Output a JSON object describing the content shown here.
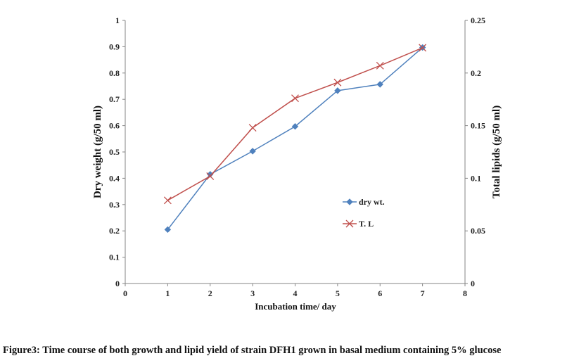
{
  "chart_data": {
    "type": "line",
    "title": "",
    "xlabel": "Incubation time/ day",
    "ylabel": "Dry weight (g/50 ml)",
    "y2label": "Total lipids (g/50  ml)",
    "xlim": [
      0,
      8
    ],
    "ylim": [
      0,
      1
    ],
    "y2lim": [
      0,
      0.25
    ],
    "x_ticks": [
      "0",
      "1",
      "2",
      "3",
      "4",
      "5",
      "6",
      "7",
      "8"
    ],
    "y_ticks": [
      "0",
      "0.1",
      "0.2",
      "0.3",
      "0.4",
      "0.5",
      "0.6",
      "0.7",
      "0.8",
      "0.9",
      "1"
    ],
    "y2_ticks": [
      "0",
      "0.05",
      "0.1",
      "0.15",
      "0.2",
      "0.25"
    ],
    "grid": false,
    "legend_position": "center-right",
    "x": [
      1,
      2,
      3,
      4,
      5,
      6,
      7
    ],
    "series": [
      {
        "name": "dry wt.",
        "axis": "left",
        "marker": "diamond",
        "color": "#4f81bd",
        "values": [
          0.205,
          0.415,
          0.503,
          0.597,
          0.733,
          0.757,
          0.897
        ]
      },
      {
        "name": "T. L",
        "axis": "right",
        "marker": "x",
        "color": "#c0504d",
        "values": [
          0.079,
          0.102,
          0.148,
          0.176,
          0.191,
          0.207,
          0.224
        ]
      }
    ]
  },
  "caption": "Figure3: Time course of both growth and lipid yield of strain DFH1 grown in basal medium containing 5% glucose"
}
